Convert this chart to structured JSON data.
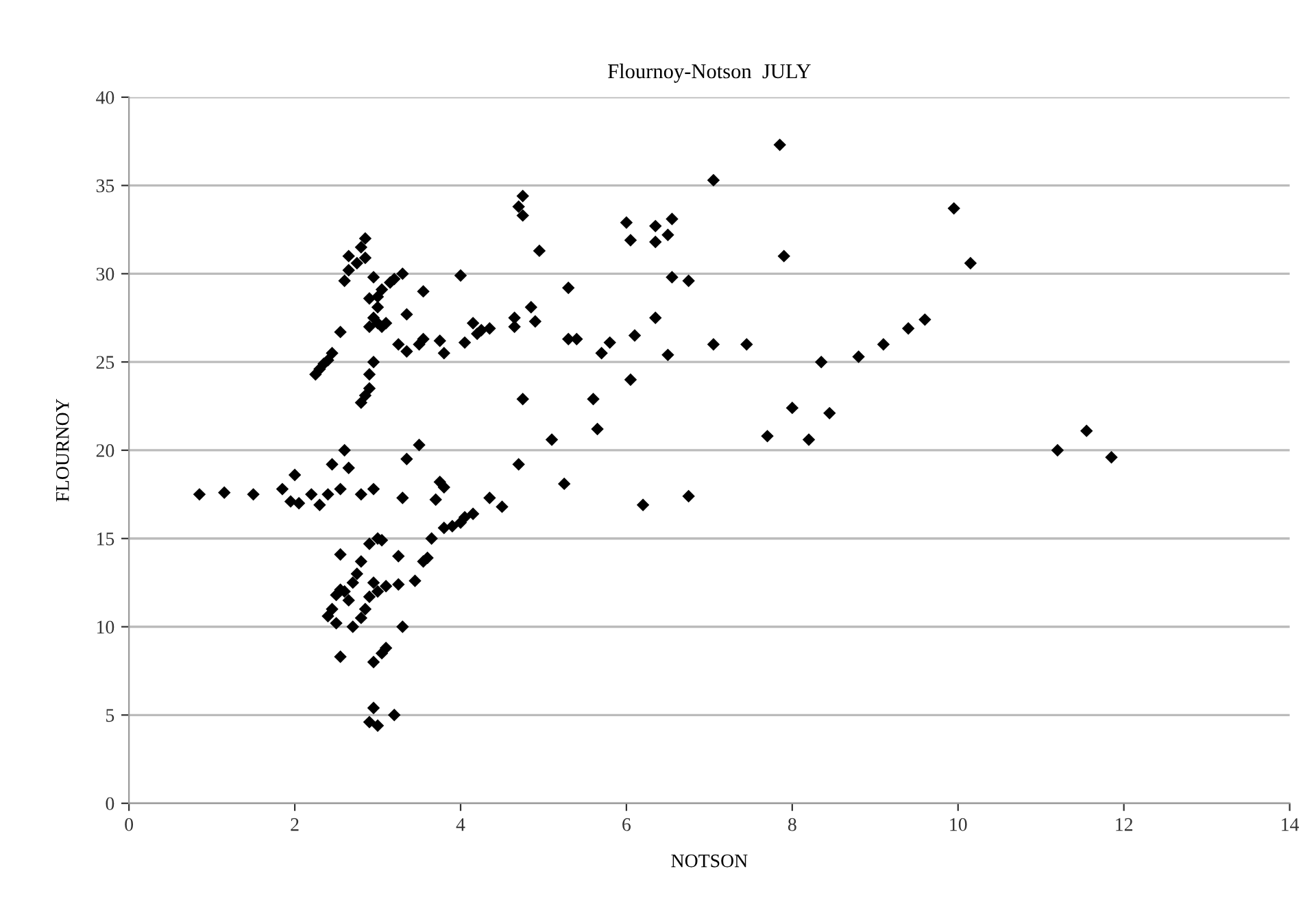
{
  "chart_data": {
    "type": "scatter",
    "title": "Flournoy-Notson  JULY",
    "xlabel": "NOTSON",
    "ylabel": "FLOURNOY",
    "x": [
      0.85,
      1.15,
      1.5,
      1.85,
      1.95,
      2.05,
      2.0,
      2.2,
      2.3,
      2.4,
      2.45,
      2.55,
      2.6,
      2.65,
      2.8,
      2.95,
      3.3,
      3.35,
      3.5,
      3.7,
      3.75,
      3.8,
      2.4,
      2.45,
      2.5,
      2.5,
      2.55,
      2.55,
      2.6,
      2.55,
      2.65,
      2.7,
      2.7,
      2.75,
      2.8,
      2.8,
      2.85,
      2.9,
      2.9,
      2.95,
      3.0,
      3.0,
      3.05,
      3.1,
      2.95,
      3.05,
      3.1,
      3.25,
      3.25,
      3.3,
      2.95,
      2.9,
      3.0,
      3.2,
      3.45,
      3.55,
      3.6,
      3.65,
      3.8,
      3.9,
      4.0,
      4.05,
      4.15,
      4.35,
      4.5,
      2.25,
      2.3,
      2.35,
      2.4,
      2.45,
      2.55,
      2.6,
      2.65,
      2.65,
      2.75,
      2.8,
      2.85,
      2.85,
      2.8,
      2.85,
      2.9,
      2.9,
      2.95,
      2.95,
      2.9,
      3.0,
      3.0,
      2.9,
      2.95,
      3.05,
      3.0,
      3.05,
      3.1,
      3.15,
      3.2,
      3.3,
      3.25,
      3.35,
      3.35,
      3.5,
      3.55,
      3.55,
      3.75,
      3.8,
      4.0,
      4.05,
      4.15,
      4.2,
      4.25,
      4.35,
      4.65,
      4.65,
      4.7,
      4.75,
      4.75,
      4.75,
      4.7,
      4.85,
      4.9,
      4.95,
      5.1,
      5.25,
      5.3,
      5.3,
      5.4,
      5.6,
      5.65,
      5.7,
      5.8,
      6.0,
      6.05,
      6.05,
      6.1,
      6.2,
      6.35,
      6.35,
      6.35,
      6.5,
      6.55,
      6.55,
      6.5,
      6.75,
      6.75,
      7.05,
      7.05,
      7.45,
      7.85,
      7.9,
      7.7,
      8.0,
      8.2,
      8.35,
      8.45,
      8.8,
      9.1,
      9.4,
      9.6,
      9.95,
      10.15,
      11.2,
      11.55,
      11.85
    ],
    "values": [
      17.5,
      17.6,
      17.5,
      17.8,
      17.1,
      17.0,
      18.6,
      17.5,
      16.9,
      17.5,
      19.2,
      17.8,
      20.0,
      19.0,
      17.5,
      17.8,
      17.3,
      19.5,
      20.3,
      17.2,
      18.2,
      17.9,
      10.6,
      11.0,
      11.8,
      10.2,
      12.1,
      14.1,
      12.0,
      8.3,
      11.5,
      12.5,
      10.0,
      13.0,
      10.5,
      13.7,
      11.0,
      11.7,
      14.7,
      12.5,
      15.0,
      12.0,
      14.9,
      12.3,
      8.0,
      8.5,
      8.8,
      12.4,
      14.0,
      10.0,
      5.4,
      4.6,
      4.4,
      5.0,
      12.6,
      13.7,
      13.9,
      15.0,
      15.6,
      15.7,
      15.9,
      16.2,
      16.4,
      17.3,
      16.8,
      24.3,
      24.6,
      24.9,
      25.1,
      25.5,
      26.7,
      29.6,
      30.2,
      31.0,
      30.6,
      31.5,
      32.0,
      30.9,
      22.7,
      23.1,
      23.5,
      24.3,
      25.0,
      29.8,
      28.6,
      28.1,
      27.2,
      27.0,
      27.5,
      27.0,
      28.7,
      29.1,
      27.2,
      29.5,
      29.7,
      30.0,
      26.0,
      27.7,
      25.6,
      26.0,
      26.3,
      29.0,
      26.2,
      25.5,
      29.9,
      26.1,
      27.2,
      26.6,
      26.8,
      26.9,
      27.0,
      27.5,
      33.8,
      34.4,
      33.3,
      22.9,
      19.2,
      28.1,
      27.3,
      31.3,
      20.6,
      18.1,
      29.2,
      26.3,
      26.3,
      22.9,
      21.2,
      25.5,
      26.1,
      32.9,
      31.9,
      24.0,
      26.5,
      16.9,
      27.5,
      32.7,
      31.8,
      32.2,
      33.1,
      29.8,
      25.4,
      29.6,
      17.4,
      35.3,
      26.0,
      26.0,
      37.3,
      31.0,
      20.8,
      22.4,
      20.6,
      25.0,
      22.1,
      25.3,
      26.0,
      26.9,
      27.4,
      33.7,
      30.6,
      20.0,
      21.1,
      19.6
    ],
    "color": "#000000",
    "marker": "diamond",
    "grid": "y",
    "xlim": [
      0,
      14
    ],
    "xticks": [
      0,
      2,
      4,
      6,
      8,
      10,
      12,
      14
    ],
    "ylim": [
      0,
      40
    ],
    "yticks": [
      0,
      5,
      10,
      15,
      20,
      25,
      30,
      35,
      40
    ]
  }
}
